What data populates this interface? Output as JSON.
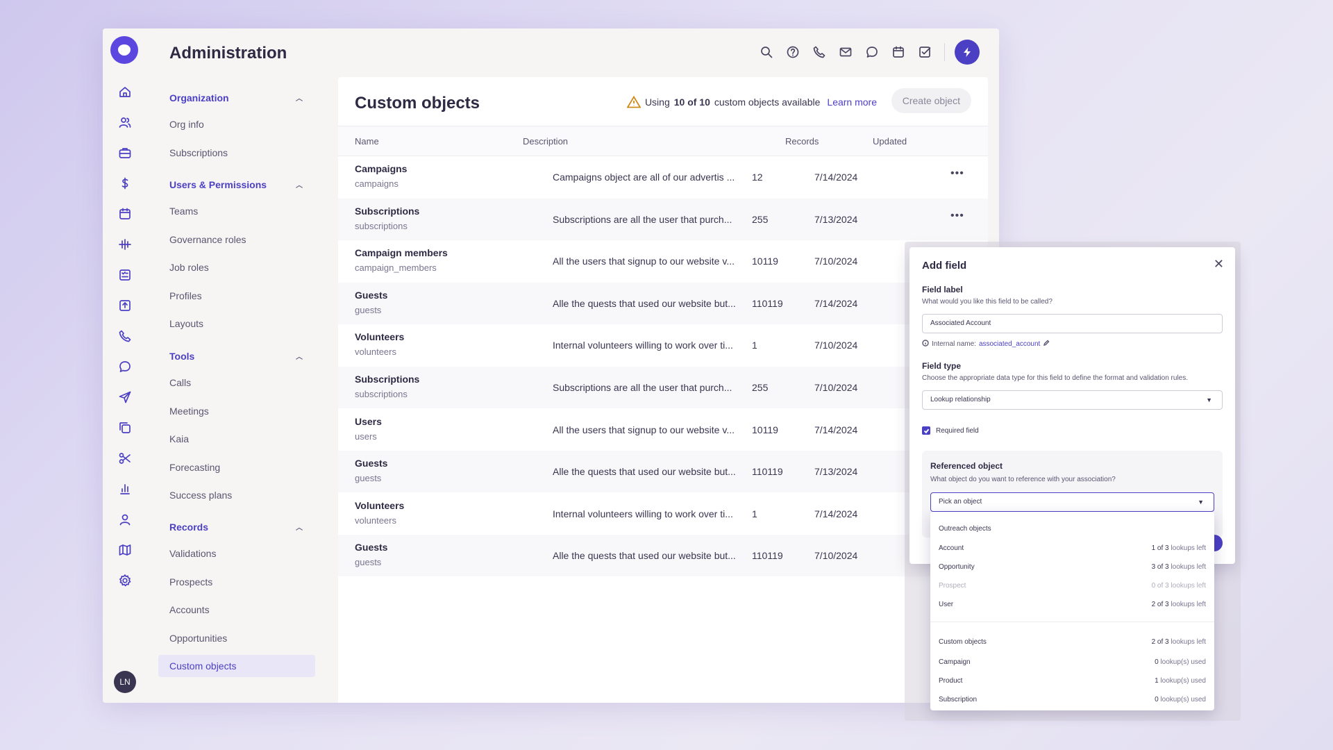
{
  "app": {
    "title": "Administration",
    "avatar_initials": "LN",
    "accent": "#4b3fc4",
    "rail_icons": [
      "home-icon",
      "people-icon",
      "briefcase-icon",
      "dollar-icon",
      "calendar-icon",
      "waveform-icon",
      "checklist-icon",
      "upload-icon",
      "phone-icon",
      "chat-icon",
      "send-icon",
      "copy-icon",
      "scissors-icon",
      "bar-chart-icon",
      "person-icon",
      "map-icon",
      "gear-icon"
    ],
    "topbar_icons": [
      "search-icon",
      "help-icon",
      "phone-icon",
      "mail-icon",
      "chat-icon",
      "calendar-icon",
      "task-icon",
      "bolt-icon"
    ]
  },
  "sidebar": {
    "sections": [
      {
        "label": "Organization",
        "items": [
          "Org info",
          "Subscriptions"
        ]
      },
      {
        "label": "Users & Permissions",
        "items": [
          "Teams",
          "Governance roles",
          "Job roles",
          "Profiles",
          "Layouts"
        ]
      },
      {
        "label": "Tools",
        "items": [
          "Calls",
          "Meetings",
          "Kaia",
          "Forecasting",
          "Success plans"
        ]
      },
      {
        "label": "Records",
        "items": [
          "Validations",
          "Prospects",
          "Accounts",
          "Opportunities",
          "Custom objects"
        ]
      }
    ],
    "active_item": "Custom objects"
  },
  "main": {
    "title": "Custom objects",
    "usage_prefix": "Using",
    "usage_count": "10 of 10",
    "usage_suffix": "custom objects available",
    "learn_more": "Learn more",
    "create_button": "Create object",
    "columns": [
      "Name",
      "Description",
      "Records",
      "Updated"
    ],
    "rows": [
      {
        "name": "Campaigns",
        "api": "campaigns",
        "description": "Campaigns object are all of our advertis ...",
        "records": "12",
        "updated": "7/14/2024",
        "menu": "•••"
      },
      {
        "name": "Subscriptions",
        "api": "subscriptions",
        "description": "Subscriptions are all the user that purch...",
        "records": "255",
        "updated": "7/13/2024",
        "menu": "•••"
      },
      {
        "name": "Campaign members",
        "api": "campaign_members",
        "description": "All the users that signup to our website v...",
        "records": "10119",
        "updated": "7/10/2024",
        "menu": ""
      },
      {
        "name": "Guests",
        "api": "guests",
        "description": "Alle the quests that used our website but...",
        "records": "110119",
        "updated": "7/14/2024",
        "menu": ""
      },
      {
        "name": "Volunteers",
        "api": "volunteers",
        "description": "Internal volunteers willing to work over ti...",
        "records": "1",
        "updated": "7/10/2024",
        "menu": ""
      },
      {
        "name": "Subscriptions",
        "api": "subscriptions",
        "description": "Subscriptions are all the user that purch...",
        "records": "255",
        "updated": "7/10/2024",
        "menu": ""
      },
      {
        "name": "Users",
        "api": "users",
        "description": "All the users that signup to our website v...",
        "records": "10119",
        "updated": "7/14/2024",
        "menu": ""
      },
      {
        "name": "Guests",
        "api": "guests",
        "description": "Alle the quests that used our website but...",
        "records": "110119",
        "updated": "7/13/2024",
        "menu": ""
      },
      {
        "name": "Volunteers",
        "api": "volunteers",
        "description": "Internal volunteers willing to work over ti...",
        "records": "1",
        "updated": "7/14/2024",
        "menu": ""
      },
      {
        "name": "Guests",
        "api": "guests",
        "description": "Alle the quests that used our website but...",
        "records": "110119",
        "updated": "7/10/2024",
        "menu": ""
      }
    ]
  },
  "modal": {
    "title": "Add field",
    "close": "✕",
    "field_label": {
      "label": "Field label",
      "hint": "What would you like this field to be called?",
      "value": "Associated Account"
    },
    "internal_name_prefix": "Internal name:",
    "internal_name_value": "associated_account",
    "field_type": {
      "label": "Field type",
      "hint": "Choose the appropriate data type for this field to define the format and validation rules.",
      "value": "Lookup relationship"
    },
    "required_label": "Required field",
    "required_checked": true,
    "referenced": {
      "title": "Referenced object",
      "hint": "What object do you want to reference with your association?",
      "placeholder": "Pick an object"
    }
  },
  "dropdown": {
    "group1": "Outreach objects",
    "outreach": [
      {
        "label": "Account",
        "count": "1 of 3",
        "suffix": "lookups left",
        "disabled": false
      },
      {
        "label": "Opportunity",
        "count": "3 of 3",
        "suffix": "lookups left",
        "disabled": false
      },
      {
        "label": "Prospect",
        "count": "0 of 3",
        "suffix": "lookups left",
        "disabled": true
      },
      {
        "label": "User",
        "count": "2 of 3",
        "suffix": "lookups left",
        "disabled": false
      }
    ],
    "group2": "Custom objects",
    "group2_count": "2 of 3",
    "group2_suffix": "lookups left",
    "custom": [
      {
        "label": "Campaign",
        "count": "0",
        "suffix": "lookup(s) used"
      },
      {
        "label": "Product",
        "count": "1",
        "suffix": "lookup(s) used"
      },
      {
        "label": "Subscription",
        "count": "0",
        "suffix": "lookup(s) used"
      }
    ]
  }
}
